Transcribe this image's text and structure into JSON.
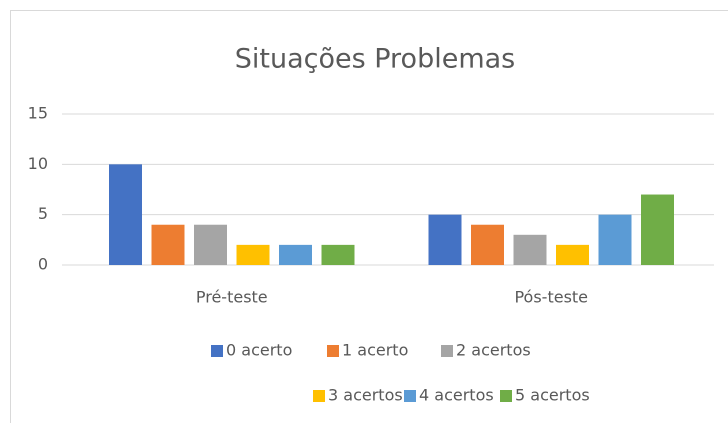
{
  "chart_data": {
    "type": "bar",
    "title": "Situações Problemas",
    "categories": [
      "Pré-teste",
      "Pós-teste"
    ],
    "series": [
      {
        "name": "0 acerto",
        "color": "#4472c4",
        "values": [
          10,
          5
        ]
      },
      {
        "name": "1 acerto",
        "color": "#ed7d31",
        "values": [
          4,
          4
        ]
      },
      {
        "name": "2 acertos",
        "color": "#a5a5a5",
        "values": [
          4,
          3
        ]
      },
      {
        "name": "3 acertos",
        "color": "#ffc000",
        "values": [
          2,
          2
        ]
      },
      {
        "name": "4 acertos",
        "color": "#5b9bd5",
        "values": [
          2,
          5
        ]
      },
      {
        "name": "5 acertos",
        "color": "#70ad47",
        "values": [
          2,
          7
        ]
      }
    ],
    "ylim": [
      0,
      15
    ],
    "yticks": [
      0,
      5,
      10,
      15
    ],
    "grid": true,
    "legend": "bottom"
  }
}
